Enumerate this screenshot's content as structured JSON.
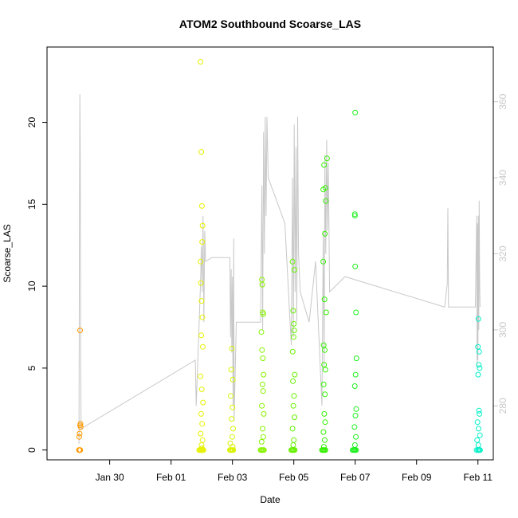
{
  "chart_data": {
    "type": "scatter",
    "title": "ATOM2 Southbound Scoarse_LAS",
    "xlabel": "Date",
    "ylabel": "Scoarse_LAS",
    "xlim": [
      "2017-01-27T23:00",
      "2017-02-11T12:00"
    ],
    "ylim": [
      -0.6,
      24.6
    ],
    "x_ticks": [
      {
        "date": "2017-01-30",
        "label": "Jan 30"
      },
      {
        "date": "2017-02-01",
        "label": "Feb 01"
      },
      {
        "date": "2017-02-03",
        "label": "Feb 03"
      },
      {
        "date": "2017-02-05",
        "label": "Feb 05"
      },
      {
        "date": "2017-02-07",
        "label": "Feb 07"
      },
      {
        "date": "2017-02-09",
        "label": "Feb 09"
      },
      {
        "date": "2017-02-11",
        "label": "Feb 11"
      }
    ],
    "y_ticks": [
      0,
      5,
      10,
      15,
      20
    ],
    "y2_ticks": [
      280,
      300,
      320,
      340,
      360
    ],
    "y2lim": [
      265.8,
      374.4
    ],
    "grid": false,
    "line_color": "#c8c8c8",
    "line": {
      "name": "",
      "points": [
        [
          "2017-01-29T00:00",
          270
        ],
        [
          "2017-01-29T00:20",
          320
        ],
        [
          "2017-01-29T00:40",
          362
        ],
        [
          "2017-01-29T01:00",
          345
        ],
        [
          "2017-01-29T01:20",
          290
        ],
        [
          "2017-01-29T01:40",
          274
        ],
        [
          "2017-02-01T19:00",
          292
        ],
        [
          "2017-02-01T19:40",
          280
        ],
        [
          "2017-02-01T23:00",
          312
        ],
        [
          "2017-02-01T23:40",
          322
        ],
        [
          "2017-02-02T00:20",
          310
        ],
        [
          "2017-02-02T01:00",
          330
        ],
        [
          "2017-02-02T01:40",
          302
        ],
        [
          "2017-02-02T02:20",
          326
        ],
        [
          "2017-02-02T03:00",
          318
        ],
        [
          "2017-02-02T08:00",
          319
        ],
        [
          "2017-02-02T22:00",
          319
        ],
        [
          "2017-02-02T22:30",
          298
        ],
        [
          "2017-02-02T23:00",
          316
        ],
        [
          "2017-02-02T23:30",
          294
        ],
        [
          "2017-02-03T00:00",
          314
        ],
        [
          "2017-02-03T00:30",
          280
        ],
        [
          "2017-02-03T01:00",
          324
        ],
        [
          "2017-02-03T01:20",
          276
        ],
        [
          "2017-02-03T03:00",
          302
        ],
        [
          "2017-02-03T17:00",
          302
        ],
        [
          "2017-02-03T22:00",
          302
        ],
        [
          "2017-02-03T23:00",
          338
        ],
        [
          "2017-02-03T23:40",
          300
        ],
        [
          "2017-02-04T00:20",
          352
        ],
        [
          "2017-02-04T01:00",
          320
        ],
        [
          "2017-02-04T01:40",
          356
        ],
        [
          "2017-02-04T02:20",
          330
        ],
        [
          "2017-02-04T03:00",
          356
        ],
        [
          "2017-02-04T04:00",
          340
        ],
        [
          "2017-02-04T17:00",
          328
        ],
        [
          "2017-02-04T22:00",
          296
        ],
        [
          "2017-02-04T23:00",
          340
        ],
        [
          "2017-02-04T23:40",
          298
        ],
        [
          "2017-02-05T00:20",
          354
        ],
        [
          "2017-02-05T01:00",
          310
        ],
        [
          "2017-02-05T01:40",
          348
        ],
        [
          "2017-02-05T02:20",
          302
        ],
        [
          "2017-02-05T03:00",
          356
        ],
        [
          "2017-02-05T03:40",
          320
        ],
        [
          "2017-02-05T05:00",
          310
        ],
        [
          "2017-02-05T12:00",
          302
        ],
        [
          "2017-02-05T17:00",
          318
        ],
        [
          "2017-02-05T22:00",
          280
        ],
        [
          "2017-02-05T23:00",
          326
        ],
        [
          "2017-02-05T23:40",
          290
        ],
        [
          "2017-02-06T00:20",
          346
        ],
        [
          "2017-02-06T01:00",
          320
        ],
        [
          "2017-02-06T01:40",
          350
        ],
        [
          "2017-02-06T02:20",
          326
        ],
        [
          "2017-02-06T03:00",
          344
        ],
        [
          "2017-02-06T04:00",
          310
        ],
        [
          "2017-02-06T16:00",
          314
        ],
        [
          "2017-02-09T22:00",
          306
        ],
        [
          "2017-02-10T00:00",
          312
        ],
        [
          "2017-02-10T00:30",
          332
        ],
        [
          "2017-02-10T01:00",
          306
        ],
        [
          "2017-02-10T22:00",
          306
        ],
        [
          "2017-02-10T23:00",
          330
        ],
        [
          "2017-02-10T23:20",
          290
        ],
        [
          "2017-02-10T23:40",
          328
        ],
        [
          "2017-02-11T00:00",
          292
        ],
        [
          "2017-02-11T00:20",
          330
        ],
        [
          "2017-02-11T00:40",
          300
        ],
        [
          "2017-02-11T01:00",
          334
        ],
        [
          "2017-02-11T01:20",
          312
        ],
        [
          "2017-02-11T01:40",
          306
        ]
      ]
    },
    "series": [
      {
        "name": "",
        "color": "#ff9900",
        "points": [
          [
            "2017-01-29T00:00",
            0
          ],
          [
            "2017-01-29T00:20",
            0
          ],
          [
            "2017-01-29T00:40",
            0
          ],
          [
            "2017-01-29T01:00",
            0
          ],
          [
            "2017-01-29T00:10",
            0.8
          ],
          [
            "2017-01-29T00:30",
            1.0
          ],
          [
            "2017-01-29T00:50",
            1.5
          ],
          [
            "2017-01-29T01:10",
            1.6
          ],
          [
            "2017-01-29T01:20",
            1.4
          ],
          [
            "2017-01-29T00:50",
            7.3
          ]
        ]
      },
      {
        "name": "",
        "color": "#e6f200",
        "points": [
          [
            "2017-02-01T22:00",
            0
          ],
          [
            "2017-02-01T22:40",
            0
          ],
          [
            "2017-02-01T23:20",
            0
          ],
          [
            "2017-02-02T00:00",
            0
          ],
          [
            "2017-02-02T00:40",
            0
          ],
          [
            "2017-02-02T01:20",
            0
          ],
          [
            "2017-02-01T23:00",
            23.7
          ],
          [
            "2017-02-01T23:40",
            18.2
          ],
          [
            "2017-02-02T00:10",
            14.9
          ],
          [
            "2017-02-02T00:40",
            13.7
          ],
          [
            "2017-02-02T00:20",
            12.7
          ],
          [
            "2017-02-01T23:10",
            11.5
          ],
          [
            "2017-02-01T23:20",
            10.2
          ],
          [
            "2017-02-01T23:50",
            9.1
          ],
          [
            "2017-02-02T00:30",
            8.1
          ],
          [
            "2017-02-01T23:40",
            7.0
          ],
          [
            "2017-02-02T00:50",
            6.3
          ],
          [
            "2017-02-01T23:00",
            4.5
          ],
          [
            "2017-02-02T00:00",
            3.7
          ],
          [
            "2017-02-02T01:00",
            2.9
          ],
          [
            "2017-02-01T23:30",
            2.2
          ],
          [
            "2017-02-02T00:20",
            1.6
          ],
          [
            "2017-02-01T23:10",
            1.0
          ],
          [
            "2017-02-02T00:40",
            0.6
          ],
          [
            "2017-02-01T23:50",
            0.3
          ],
          [
            "2017-02-02T00:10",
            0.1
          ]
        ]
      },
      {
        "name": "",
        "color": "#d9f200",
        "points": [
          [
            "2017-02-02T22:00",
            0
          ],
          [
            "2017-02-02T22:40",
            0
          ],
          [
            "2017-02-02T23:20",
            0
          ],
          [
            "2017-02-03T00:00",
            0
          ],
          [
            "2017-02-03T00:40",
            0
          ],
          [
            "2017-02-02T23:30",
            6.2
          ],
          [
            "2017-02-02T23:00",
            4.9
          ],
          [
            "2017-02-03T00:20",
            4.3
          ],
          [
            "2017-02-02T22:40",
            3.3
          ],
          [
            "2017-02-03T00:00",
            2.6
          ],
          [
            "2017-02-02T23:20",
            1.9
          ],
          [
            "2017-02-03T00:30",
            1.3
          ],
          [
            "2017-02-02T23:50",
            0.8
          ],
          [
            "2017-02-02T22:20",
            0.4
          ],
          [
            "2017-02-03T00:10",
            0.2
          ]
        ]
      },
      {
        "name": "",
        "color": "#88f200",
        "points": [
          [
            "2017-02-03T22:00",
            0
          ],
          [
            "2017-02-03T22:40",
            0
          ],
          [
            "2017-02-03T23:20",
            0
          ],
          [
            "2017-02-04T00:00",
            0
          ],
          [
            "2017-02-04T00:40",
            0
          ],
          [
            "2017-02-03T23:00",
            10.4
          ],
          [
            "2017-02-03T23:20",
            10.1
          ],
          [
            "2017-02-03T23:40",
            8.4
          ],
          [
            "2017-02-04T00:10",
            8.3
          ],
          [
            "2017-02-03T22:40",
            7.2
          ],
          [
            "2017-02-03T23:10",
            6.1
          ],
          [
            "2017-02-03T23:50",
            5.6
          ],
          [
            "2017-02-04T00:20",
            4.6
          ],
          [
            "2017-02-03T23:30",
            4.0
          ],
          [
            "2017-02-04T00:00",
            3.6
          ],
          [
            "2017-02-03T23:00",
            2.7
          ],
          [
            "2017-02-04T00:30",
            2.2
          ],
          [
            "2017-02-03T23:40",
            1.3
          ],
          [
            "2017-02-04T00:10",
            0.8
          ],
          [
            "2017-02-03T22:50",
            0.5
          ]
        ]
      },
      {
        "name": "",
        "color": "#66f000",
        "points": [
          [
            "2017-02-04T22:00",
            0
          ],
          [
            "2017-02-04T22:40",
            0
          ],
          [
            "2017-02-04T23:20",
            0
          ],
          [
            "2017-02-05T00:00",
            0
          ],
          [
            "2017-02-05T00:40",
            0
          ],
          [
            "2017-02-04T23:00",
            11.5
          ],
          [
            "2017-02-05T00:30",
            11.0
          ],
          [
            "2017-02-04T23:30",
            8.5
          ],
          [
            "2017-02-05T00:00",
            7.7
          ],
          [
            "2017-02-05T00:20",
            7.3
          ],
          [
            "2017-02-04T23:50",
            6.9
          ],
          [
            "2017-02-04T23:10",
            6.0
          ],
          [
            "2017-02-05T00:40",
            4.6
          ],
          [
            "2017-02-04T23:20",
            4.2
          ],
          [
            "2017-02-05T00:10",
            3.3
          ],
          [
            "2017-02-04T23:40",
            2.7
          ],
          [
            "2017-02-05T00:30",
            2.0
          ],
          [
            "2017-02-04T23:00",
            1.3
          ],
          [
            "2017-02-05T00:00",
            0.6
          ],
          [
            "2017-02-04T23:30",
            0.3
          ]
        ]
      },
      {
        "name": "",
        "color": "#33f000",
        "points": [
          [
            "2017-02-05T22:00",
            0
          ],
          [
            "2017-02-05T22:40",
            0
          ],
          [
            "2017-02-05T23:20",
            0
          ],
          [
            "2017-02-06T00:00",
            0
          ],
          [
            "2017-02-06T00:40",
            0
          ],
          [
            "2017-02-06T02:00",
            17.8
          ],
          [
            "2017-02-05T23:40",
            17.4
          ],
          [
            "2017-02-06T00:40",
            16.0
          ],
          [
            "2017-02-05T23:00",
            15.9
          ],
          [
            "2017-02-06T01:00",
            15.2
          ],
          [
            "2017-02-06T00:20",
            13.2
          ],
          [
            "2017-02-05T23:00",
            11.5
          ],
          [
            "2017-02-06T00:00",
            9.2
          ],
          [
            "2017-02-06T01:20",
            8.4
          ],
          [
            "2017-02-05T23:20",
            6.4
          ],
          [
            "2017-02-06T00:10",
            6.1
          ],
          [
            "2017-02-05T23:40",
            5.2
          ],
          [
            "2017-02-06T00:40",
            4.9
          ],
          [
            "2017-02-05T23:20",
            4.0
          ],
          [
            "2017-02-06T00:20",
            3.4
          ],
          [
            "2017-02-05T23:50",
            2.2
          ],
          [
            "2017-02-06T00:30",
            1.7
          ],
          [
            "2017-02-05T23:10",
            1.1
          ],
          [
            "2017-02-06T00:10",
            0.6
          ],
          [
            "2017-02-05T23:30",
            0.2
          ]
        ]
      },
      {
        "name": "",
        "color": "#1ef01e",
        "points": [
          [
            "2017-02-06T22:00",
            0
          ],
          [
            "2017-02-06T22:40",
            0
          ],
          [
            "2017-02-06T23:20",
            0
          ],
          [
            "2017-02-07T00:00",
            0
          ],
          [
            "2017-02-07T00:40",
            0
          ],
          [
            "2017-02-07T00:00",
            20.6
          ],
          [
            "2017-02-06T23:40",
            14.4
          ],
          [
            "2017-02-06T23:50",
            14.3
          ],
          [
            "2017-02-07T00:00",
            11.2
          ],
          [
            "2017-02-07T00:40",
            8.4
          ],
          [
            "2017-02-07T01:00",
            5.6
          ],
          [
            "2017-02-07T00:20",
            4.6
          ],
          [
            "2017-02-06T23:40",
            3.9
          ],
          [
            "2017-02-07T00:50",
            2.5
          ],
          [
            "2017-02-07T00:10",
            2.1
          ],
          [
            "2017-02-06T23:30",
            1.4
          ],
          [
            "2017-02-07T00:30",
            0.8
          ],
          [
            "2017-02-06T23:50",
            0.3
          ]
        ]
      },
      {
        "name": "",
        "color": "#00f0c8",
        "points": [
          [
            "2017-02-10T23:00",
            0
          ],
          [
            "2017-02-11T00:00",
            0
          ],
          [
            "2017-02-11T00:40",
            0
          ],
          [
            "2017-02-11T01:20",
            0
          ],
          [
            "2017-02-11T01:40",
            0
          ],
          [
            "2017-02-11T00:20",
            8.0
          ],
          [
            "2017-02-11T00:00",
            6.3
          ],
          [
            "2017-02-11T01:00",
            6.0
          ],
          [
            "2017-02-11T00:40",
            5.2
          ],
          [
            "2017-02-11T01:20",
            5.0
          ],
          [
            "2017-02-11T00:10",
            4.6
          ],
          [
            "2017-02-11T00:50",
            2.4
          ],
          [
            "2017-02-11T01:10",
            2.2
          ],
          [
            "2017-02-10T23:40",
            1.7
          ],
          [
            "2017-02-11T00:30",
            1.3
          ],
          [
            "2017-02-11T01:30",
            0.9
          ],
          [
            "2017-02-10T23:20",
            0.6
          ],
          [
            "2017-02-11T00:20",
            0.3
          ]
        ]
      }
    ]
  }
}
